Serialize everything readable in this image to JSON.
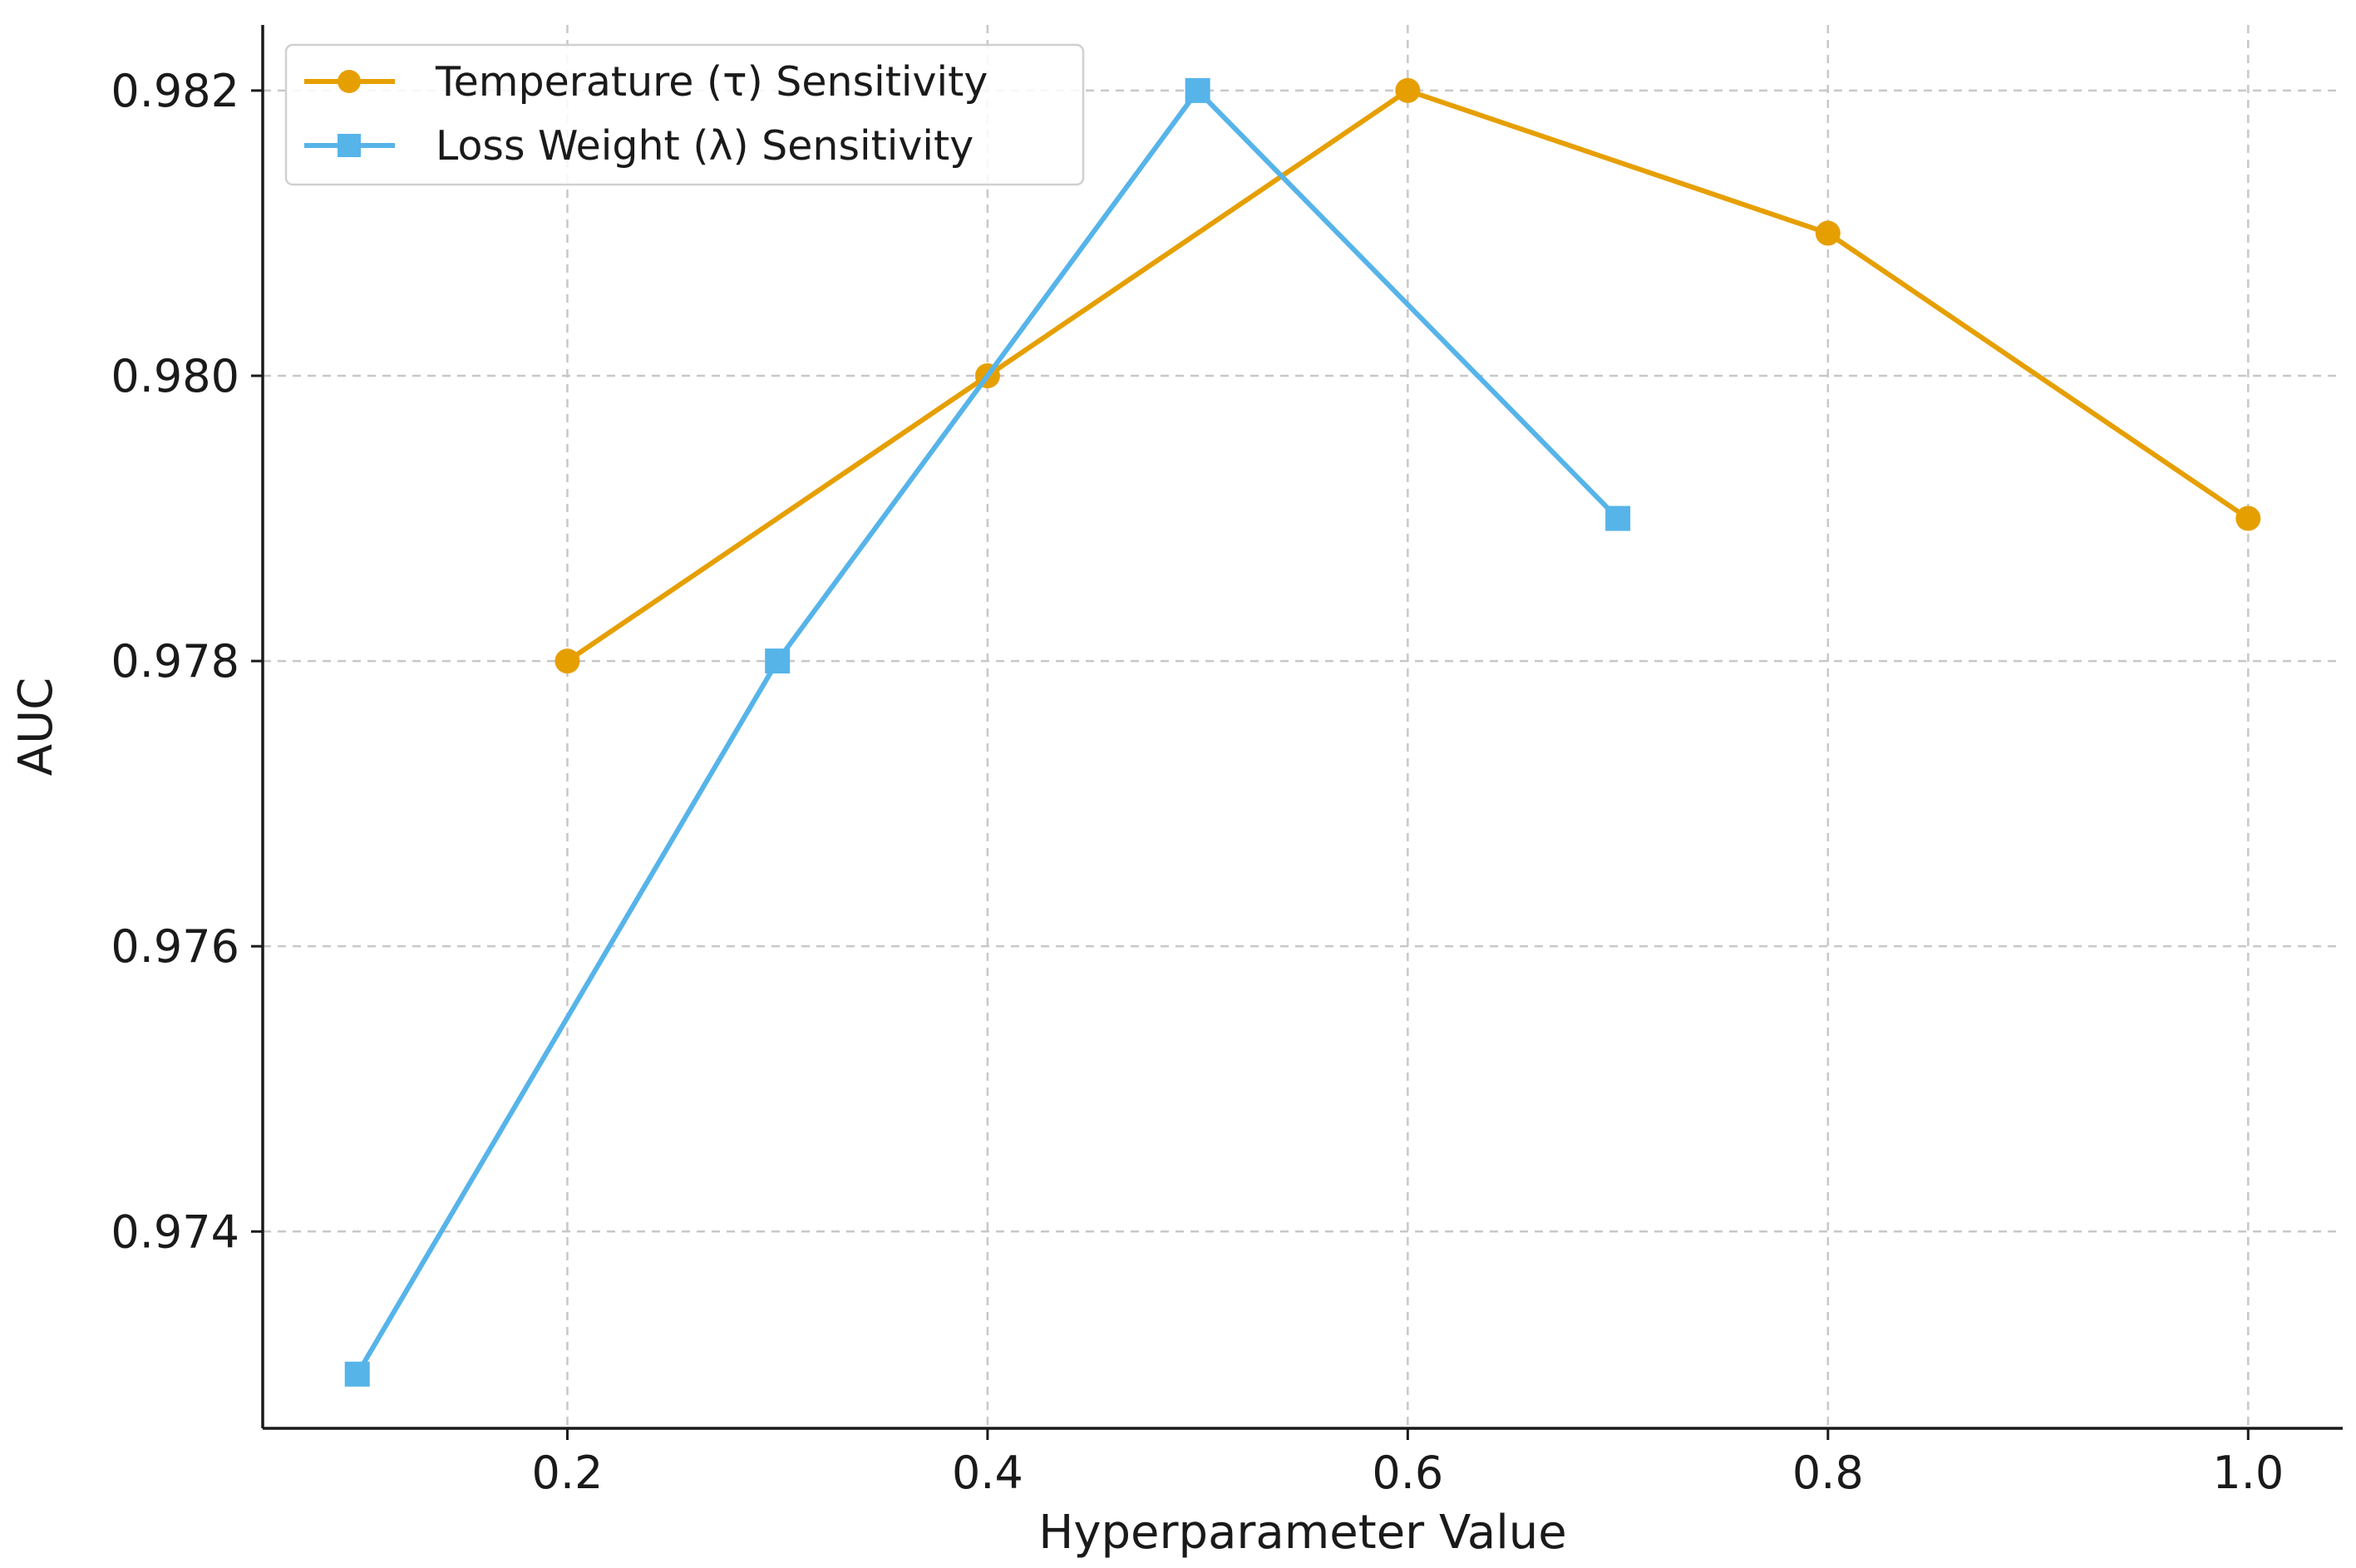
{
  "chart_data": {
    "type": "line",
    "title": "",
    "xlabel": "Hyperparameter Value",
    "ylabel": "AUC",
    "xlim": [
      0.055,
      1.045
    ],
    "ylim": [
      0.97262,
      0.98246
    ],
    "xticks": [
      0.2,
      0.4,
      0.6,
      0.8,
      1.0
    ],
    "xtick_labels": [
      "0.2",
      "0.4",
      "0.6",
      "0.8",
      "1.0"
    ],
    "yticks": [
      0.974,
      0.976,
      0.978,
      0.98,
      0.982
    ],
    "ytick_labels": [
      "0.974",
      "0.976",
      "0.978",
      "0.980",
      "0.982"
    ],
    "grid": true,
    "legend_position": "top-left",
    "series": [
      {
        "name": "Temperature (τ) Sensitivity",
        "marker": "circle",
        "color": "#E69F00",
        "x": [
          0.2,
          0.4,
          0.6,
          0.8,
          1.0
        ],
        "y": [
          0.978,
          0.98,
          0.982,
          0.981,
          0.979
        ]
      },
      {
        "name": "Loss Weight (λ) Sensitivity",
        "marker": "square",
        "color": "#56B4E9",
        "x": [
          0.1,
          0.3,
          0.5,
          0.7
        ],
        "y": [
          0.973,
          0.978,
          0.982,
          0.979
        ]
      }
    ]
  }
}
